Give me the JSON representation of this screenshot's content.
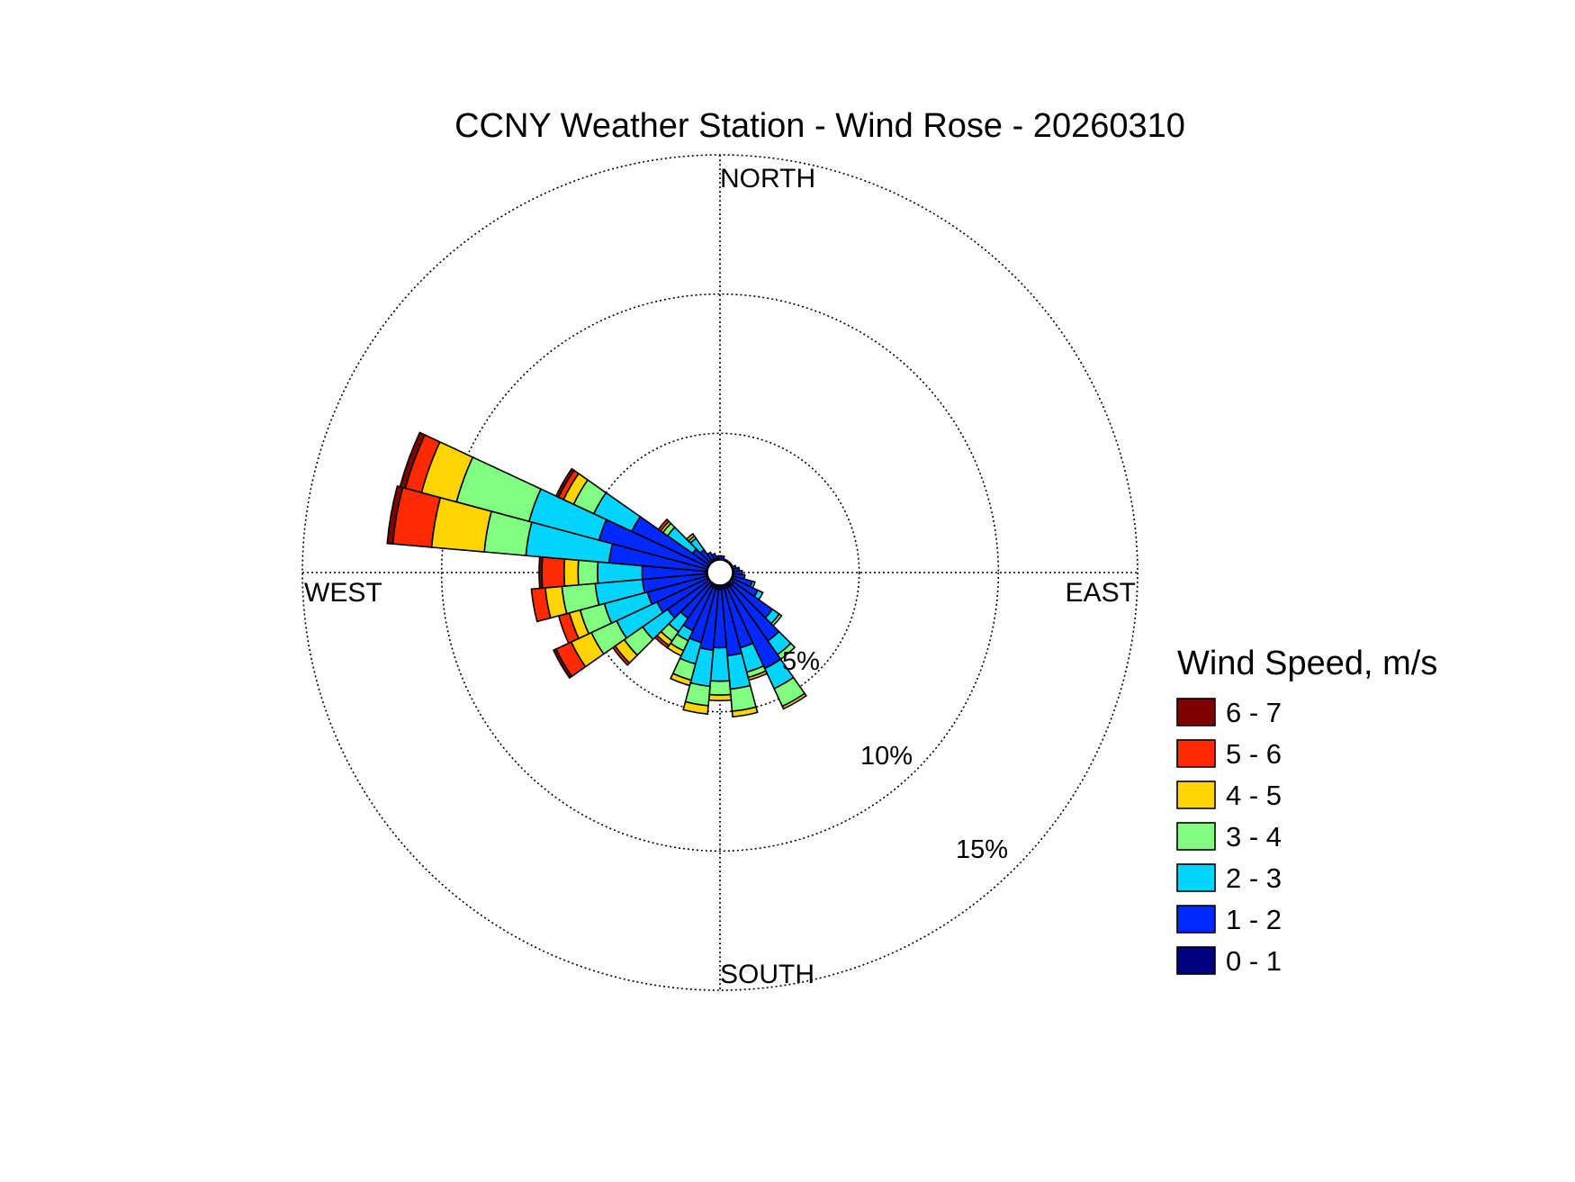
{
  "chart_data": {
    "type": "wind-rose",
    "title": "CCNY Weather Station - Wind Rose - 20260310",
    "direction_labels": {
      "north": "NORTH",
      "south": "SOUTH",
      "east": "EAST",
      "west": "WEST"
    },
    "radial_unit": "%",
    "radial_max": 15,
    "rings": [
      {
        "value": 5,
        "label": "5%"
      },
      {
        "value": 10,
        "label": "10%"
      },
      {
        "value": 15,
        "label": "15%"
      }
    ],
    "grid": true,
    "legend": {
      "title": "Wind Speed, m/s",
      "position": "right",
      "bins": [
        {
          "label": "6 - 7",
          "color": "#7f0000"
        },
        {
          "label": "5 - 6",
          "color": "#ff2a00"
        },
        {
          "label": "4 - 5",
          "color": "#ffd400"
        },
        {
          "label": "3 - 4",
          "color": "#80ff80"
        },
        {
          "label": "2 - 3",
          "color": "#00d4ff"
        },
        {
          "label": "1 - 2",
          "color": "#0028ff"
        },
        {
          "label": "0 - 1",
          "color": "#00007f"
        }
      ]
    },
    "sector_width_deg": 10,
    "sectors_note": "cumulative percent per speed bin, ordered 0-1, 1-2, 2-3, 3-4, 4-5, 5-6, 6-7",
    "sectors": [
      {
        "dir": 0,
        "cumulative": [
          0.4,
          0.6,
          0.6,
          0.6,
          0.6,
          0.6,
          0.6
        ]
      },
      {
        "dir": 10,
        "cumulative": [
          0.4,
          0.6,
          0.6,
          0.6,
          0.6,
          0.6,
          0.6
        ]
      },
      {
        "dir": 20,
        "cumulative": [
          0.4,
          0.5,
          0.5,
          0.5,
          0.5,
          0.5,
          0.5
        ]
      },
      {
        "dir": 30,
        "cumulative": [
          0.4,
          0.5,
          0.5,
          0.5,
          0.5,
          0.5,
          0.5
        ]
      },
      {
        "dir": 40,
        "cumulative": [
          0.4,
          0.5,
          0.5,
          0.5,
          0.5,
          0.5,
          0.5
        ]
      },
      {
        "dir": 50,
        "cumulative": [
          0.4,
          0.5,
          0.5,
          0.5,
          0.5,
          0.5,
          0.5
        ]
      },
      {
        "dir": 60,
        "cumulative": [
          0.4,
          0.5,
          0.5,
          0.5,
          0.5,
          0.5,
          0.5
        ]
      },
      {
        "dir": 70,
        "cumulative": [
          0.4,
          0.6,
          0.6,
          0.6,
          0.6,
          0.6,
          0.6
        ]
      },
      {
        "dir": 80,
        "cumulative": [
          0.4,
          0.7,
          0.7,
          0.7,
          0.7,
          0.7,
          0.7
        ]
      },
      {
        "dir": 90,
        "cumulative": [
          0.5,
          0.8,
          0.8,
          0.8,
          0.8,
          0.8,
          0.8
        ]
      },
      {
        "dir": 100,
        "cumulative": [
          0.5,
          0.9,
          0.9,
          0.9,
          0.9,
          0.9,
          0.9
        ]
      },
      {
        "dir": 110,
        "cumulative": [
          0.5,
          1.2,
          1.3,
          1.3,
          1.3,
          1.3,
          1.3
        ]
      },
      {
        "dir": 120,
        "cumulative": [
          0.5,
          1.5,
          1.7,
          1.7,
          1.7,
          1.7,
          1.7
        ]
      },
      {
        "dir": 130,
        "cumulative": [
          0.6,
          2.3,
          2.6,
          2.7,
          2.7,
          2.7,
          2.7
        ]
      },
      {
        "dir": 140,
        "cumulative": [
          0.6,
          3.0,
          3.6,
          3.8,
          3.8,
          3.8,
          3.8
        ]
      },
      {
        "dir": 150,
        "cumulative": [
          0.6,
          3.8,
          4.6,
          5.3,
          5.4,
          5.4,
          5.4
        ]
      },
      {
        "dir": 160,
        "cumulative": [
          0.6,
          2.8,
          3.7,
          3.9,
          4.0,
          4.0,
          4.0
        ]
      },
      {
        "dir": 170,
        "cumulative": [
          0.6,
          3.0,
          4.2,
          5.0,
          5.2,
          5.2,
          5.2
        ]
      },
      {
        "dir": 180,
        "cumulative": [
          0.6,
          2.7,
          3.9,
          4.4,
          4.6,
          4.6,
          4.6
        ]
      },
      {
        "dir": 190,
        "cumulative": [
          0.6,
          2.8,
          4.1,
          4.8,
          5.1,
          5.1,
          5.1
        ]
      },
      {
        "dir": 200,
        "cumulative": [
          0.6,
          2.6,
          3.4,
          4.0,
          4.2,
          4.2,
          4.2
        ]
      },
      {
        "dir": 210,
        "cumulative": [
          0.6,
          2.3,
          2.7,
          3.1,
          3.3,
          3.3,
          3.3
        ]
      },
      {
        "dir": 220,
        "cumulative": [
          0.5,
          2.0,
          2.6,
          3.0,
          3.2,
          3.3,
          3.3
        ]
      },
      {
        "dir": 230,
        "cumulative": [
          0.5,
          2.3,
          3.4,
          4.2,
          4.6,
          4.7,
          4.7
        ]
      },
      {
        "dir": 240,
        "cumulative": [
          0.5,
          2.5,
          4.1,
          5.1,
          5.9,
          6.5,
          6.6
        ]
      },
      {
        "dir": 250,
        "cumulative": [
          0.5,
          2.7,
          4.3,
          5.2,
          5.6,
          6.0,
          6.0
        ]
      },
      {
        "dir": 260,
        "cumulative": [
          0.5,
          2.8,
          4.5,
          5.7,
          6.3,
          6.8,
          6.8
        ]
      },
      {
        "dir": 270,
        "cumulative": [
          0.5,
          2.8,
          4.4,
          5.1,
          5.6,
          6.4,
          6.5
        ]
      },
      {
        "dir": 280,
        "cumulative": [
          0.5,
          4.0,
          7.0,
          8.5,
          10.4,
          11.8,
          12.0
        ]
      },
      {
        "dir": 290,
        "cumulative": [
          0.5,
          4.5,
          7.1,
          9.8,
          11.1,
          11.7,
          11.9
        ]
      },
      {
        "dir": 300,
        "cumulative": [
          0.5,
          3.5,
          5.0,
          5.8,
          6.2,
          6.4,
          6.5
        ]
      },
      {
        "dir": 310,
        "cumulative": [
          0.5,
          1.2,
          2.3,
          2.5,
          2.6,
          2.7,
          2.7
        ]
      },
      {
        "dir": 320,
        "cumulative": [
          0.5,
          1.0,
          1.5,
          1.6,
          1.7,
          1.7,
          1.7
        ]
      },
      {
        "dir": 330,
        "cumulative": [
          0.5,
          0.8,
          0.8,
          0.8,
          0.8,
          0.8,
          0.8
        ]
      },
      {
        "dir": 340,
        "cumulative": [
          0.5,
          0.7,
          0.7,
          0.7,
          0.7,
          0.7,
          0.7
        ]
      },
      {
        "dir": 350,
        "cumulative": [
          0.5,
          0.6,
          0.6,
          0.6,
          0.6,
          0.6,
          0.6
        ]
      }
    ]
  }
}
